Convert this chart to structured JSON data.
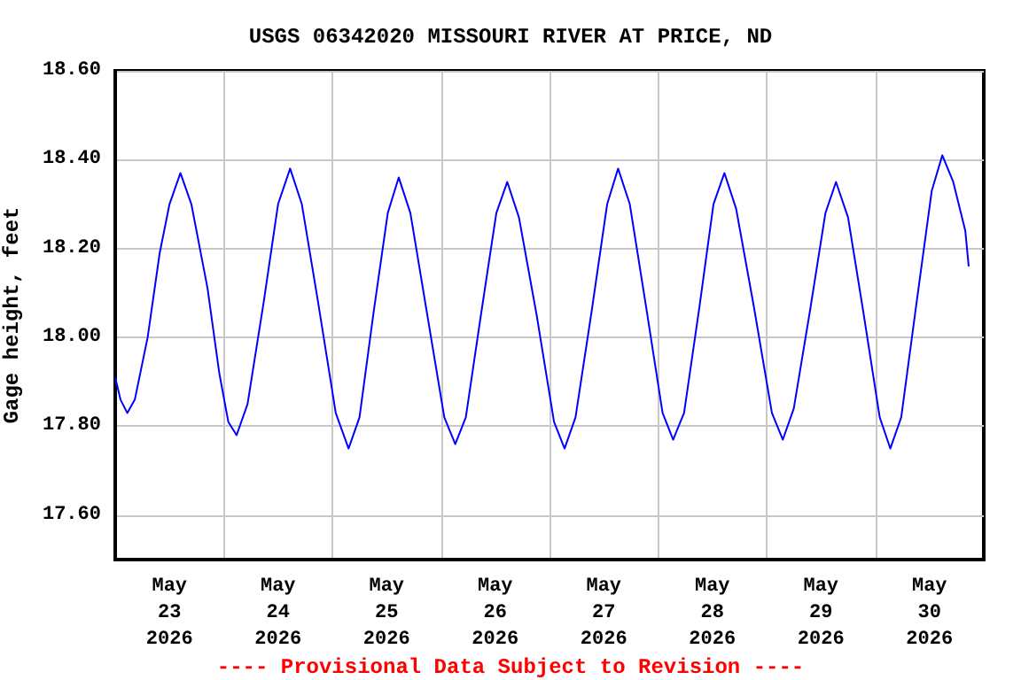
{
  "chart_data": {
    "type": "line",
    "title": "USGS 06342020 MISSOURI RIVER AT PRICE, ND",
    "ylabel": "Gage height, feet",
    "annotations": [
      "---- Provisional Data Subject to Revision ----"
    ],
    "xlim": [
      "2026-05-23",
      "2026-05-31"
    ],
    "xticks": [
      {
        "value": "2026-05-23T12:00",
        "label": "May\n23\n2026"
      },
      {
        "value": "2026-05-24T12:00",
        "label": "May\n24\n2026"
      },
      {
        "value": "2026-05-25T12:00",
        "label": "May\n25\n2026"
      },
      {
        "value": "2026-05-26T12:00",
        "label": "May\n26\n2026"
      },
      {
        "value": "2026-05-27T12:00",
        "label": "May\n27\n2026"
      },
      {
        "value": "2026-05-28T12:00",
        "label": "May\n28\n2026"
      },
      {
        "value": "2026-05-29T12:00",
        "label": "May\n29\n2026"
      },
      {
        "value": "2026-05-30T12:00",
        "label": "May\n30\n2026"
      },
      {
        "value": "2026-05-24",
        "label": null
      },
      {
        "value": "2026-05-25",
        "label": null
      },
      {
        "value": "2026-05-26",
        "label": null
      },
      {
        "value": "2026-05-27",
        "label": null
      },
      {
        "value": "2026-05-28",
        "label": null
      },
      {
        "value": "2026-05-29",
        "label": null
      },
      {
        "value": "2026-05-30",
        "label": null
      }
    ],
    "ylim": [
      17.5,
      18.6
    ],
    "yticks": [
      {
        "value": 17.6,
        "label": "17.60"
      },
      {
        "value": 17.8,
        "label": "17.80"
      },
      {
        "value": 18.0,
        "label": "18.00"
      },
      {
        "value": 18.2,
        "label": "18.20"
      },
      {
        "value": 18.4,
        "label": "18.40"
      },
      {
        "value": 18.6,
        "label": "18.60"
      }
    ],
    "grid": true,
    "marker": "none",
    "line_style": "solid",
    "x": [
      "2026-05-23T00:00",
      "2026-05-23T01:10",
      "2026-05-23T02:40",
      "2026-05-23T04:20",
      "2026-05-23T07:10",
      "2026-05-23T09:50",
      "2026-05-23T12:00",
      "2026-05-23T14:25",
      "2026-05-23T16:50",
      "2026-05-23T20:25",
      "2026-05-23T23:00",
      "2026-05-24T01:00",
      "2026-05-24T02:50",
      "2026-05-24T05:15",
      "2026-05-24T08:50",
      "2026-05-24T12:00",
      "2026-05-24T14:40",
      "2026-05-24T17:15",
      "2026-05-24T20:50",
      "2026-05-25T00:45",
      "2026-05-25T03:35",
      "2026-05-25T06:00",
      "2026-05-25T09:10",
      "2026-05-25T12:15",
      "2026-05-25T14:40",
      "2026-05-25T17:15",
      "2026-05-25T20:50",
      "2026-05-26T00:45",
      "2026-05-26T03:10",
      "2026-05-26T05:30",
      "2026-05-26T08:50",
      "2026-05-26T12:15",
      "2026-05-26T14:40",
      "2026-05-26T17:15",
      "2026-05-26T21:10",
      "2026-05-27T01:00",
      "2026-05-27T03:20",
      "2026-05-27T05:45",
      "2026-05-27T09:20",
      "2026-05-27T12:45",
      "2026-05-27T15:10",
      "2026-05-27T17:45",
      "2026-05-27T21:20",
      "2026-05-28T01:00",
      "2026-05-28T03:20",
      "2026-05-28T05:45",
      "2026-05-28T09:10",
      "2026-05-28T12:15",
      "2026-05-28T14:40",
      "2026-05-28T17:15",
      "2026-05-28T21:10",
      "2026-05-29T01:10",
      "2026-05-29T03:35",
      "2026-05-29T06:00",
      "2026-05-29T09:35",
      "2026-05-29T13:00",
      "2026-05-29T15:20",
      "2026-05-29T18:00",
      "2026-05-29T21:20",
      "2026-05-30T01:00",
      "2026-05-30T03:20",
      "2026-05-30T05:45",
      "2026-05-30T09:10",
      "2026-05-30T12:30",
      "2026-05-30T14:50",
      "2026-05-30T17:15",
      "2026-05-30T19:55",
      "2026-05-30T20:40"
    ],
    "series": [
      {
        "color": "#0000ff",
        "values": [
          17.91,
          17.86,
          17.83,
          17.86,
          18.0,
          18.19,
          18.3,
          18.37,
          18.3,
          18.11,
          17.92,
          17.81,
          17.78,
          17.85,
          18.08,
          18.3,
          18.38,
          18.3,
          18.08,
          17.83,
          17.75,
          17.82,
          18.06,
          18.28,
          18.36,
          18.28,
          18.06,
          17.82,
          17.76,
          17.82,
          18.05,
          18.28,
          18.35,
          18.27,
          18.05,
          17.81,
          17.75,
          17.82,
          18.06,
          18.3,
          18.38,
          18.3,
          18.07,
          17.83,
          17.77,
          17.83,
          18.07,
          18.3,
          18.37,
          18.29,
          18.07,
          17.83,
          17.77,
          17.84,
          18.06,
          18.28,
          18.35,
          18.27,
          18.06,
          17.82,
          17.75,
          17.82,
          18.08,
          18.33,
          18.41,
          18.35,
          18.24,
          18.16
        ]
      }
    ]
  }
}
